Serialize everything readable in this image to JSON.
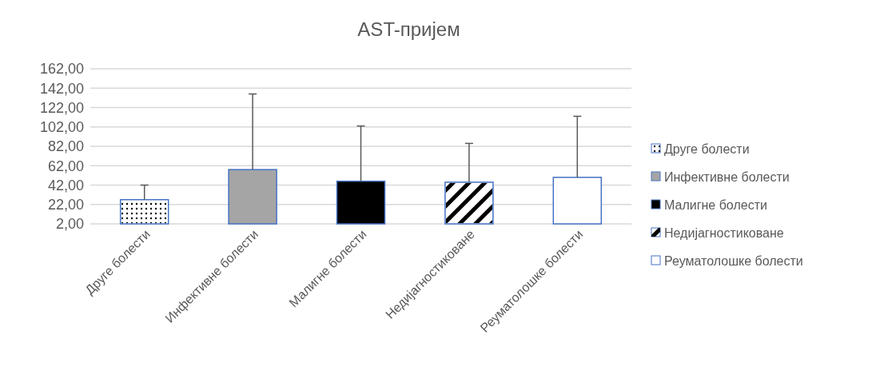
{
  "chart_data": {
    "type": "bar",
    "title": "AST-пријем",
    "categories": [
      "Друге болести",
      "Инфективне болести",
      "Малигне болести",
      "Недијагностиковане",
      "Реуматолошке болести"
    ],
    "series": [
      {
        "name": "Друге болести",
        "color": "#ffffff",
        "values": [
          27,
          null,
          null,
          null,
          null
        ],
        "errors": [
          [
            27,
            42
          ],
          null,
          null,
          null,
          null
        ]
      },
      {
        "name": "Инфективне болести",
        "color": "#a5a5a5",
        "values": [
          null,
          58,
          null,
          null,
          null
        ],
        "errors": [
          null,
          [
            58,
            136
          ],
          null,
          null,
          null
        ]
      },
      {
        "name": "Малигне болести",
        "color": "#000000",
        "values": [
          null,
          null,
          46,
          null,
          null
        ],
        "errors": [
          null,
          null,
          [
            46,
            103
          ],
          null,
          null
        ]
      },
      {
        "name": "Недијагностиковане",
        "color": "#ffffff",
        "values": [
          null,
          null,
          null,
          45,
          null
        ],
        "errors": [
          null,
          null,
          null,
          [
            45,
            85
          ],
          null
        ]
      },
      {
        "name": "Реуматолошке болести",
        "color": "#ffffff",
        "values": [
          null,
          null,
          null,
          null,
          50
        ],
        "errors": [
          null,
          null,
          null,
          null,
          [
            50,
            113
          ]
        ]
      }
    ],
    "ylim": [
      2,
      162
    ],
    "yticks": [
      {
        "value": 2,
        "label": "2,00"
      },
      {
        "value": 22,
        "label": "22,00"
      },
      {
        "value": 42,
        "label": "42,00"
      },
      {
        "value": 62,
        "label": "62,00"
      },
      {
        "value": 82,
        "label": "82,00"
      },
      {
        "value": 102,
        "label": "102,00"
      },
      {
        "value": 122,
        "label": "122,00"
      },
      {
        "value": 142,
        "label": "142,00"
      },
      {
        "value": 162,
        "label": "162,00"
      }
    ],
    "grid": "y",
    "legend": "right"
  }
}
